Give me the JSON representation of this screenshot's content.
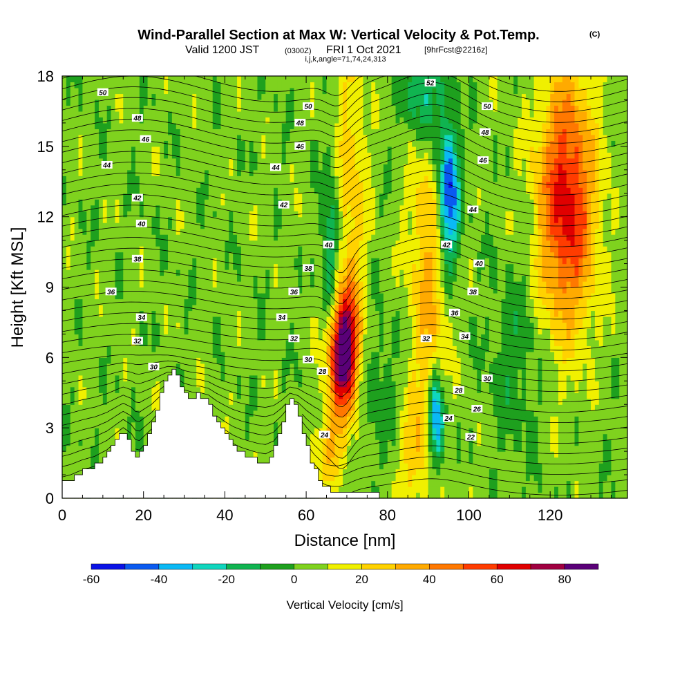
{
  "figure": {
    "title": "Wind-Parallel Section at Max W: Vertical Velocity & Pot.Temp.",
    "copyright": "(C)",
    "valid_prefix": "Valid 1200 JST",
    "valid_utc": "(0300Z)",
    "valid_date": "FRI 1 Oct 2021",
    "forecast_tag": "[9hrFcst@2216z]",
    "params": "i,j,k,angle=71,74,24,313"
  },
  "chart_data": {
    "type": "heatmap",
    "xlabel": "Distance [nm]",
    "ylabel": "Height [Kft MSL]",
    "xlim": [
      0,
      139
    ],
    "ylim": [
      0,
      18
    ],
    "x_ticks": [
      0,
      20,
      40,
      60,
      80,
      100,
      120
    ],
    "y_ticks": [
      0,
      3,
      6,
      9,
      12,
      15,
      18
    ],
    "fill_variable": "vertical velocity",
    "contour_variable": "potential temperature",
    "colorbar": {
      "title": "Vertical Velocity [cm/s]",
      "tick_labels": [
        -60,
        -40,
        -20,
        0,
        20,
        40,
        60,
        80
      ],
      "levels": [
        -60,
        -50,
        -40,
        -30,
        -20,
        -10,
        0,
        10,
        20,
        30,
        40,
        50,
        60,
        70,
        80,
        90
      ],
      "colors": [
        "#0a12e6",
        "#0a5af0",
        "#0ab9f5",
        "#10d6be",
        "#10b450",
        "#1ea01e",
        "#7fd21e",
        "#f0f000",
        "#ffd200",
        "#ffaa00",
        "#ff7800",
        "#ff3c00",
        "#e00000",
        "#a00040",
        "#5a0078"
      ]
    },
    "terrain_kft": [
      [
        0,
        0.7
      ],
      [
        2,
        0.8
      ],
      [
        5,
        1.1
      ],
      [
        8,
        1.3
      ],
      [
        11,
        1.8
      ],
      [
        13,
        2.4
      ],
      [
        15,
        3.0
      ],
      [
        17,
        2.4
      ],
      [
        18,
        1.8
      ],
      [
        19,
        1.7
      ],
      [
        20,
        2.1
      ],
      [
        22,
        2.9
      ],
      [
        24,
        4.1
      ],
      [
        26,
        5.3
      ],
      [
        28,
        5.4
      ],
      [
        30,
        4.5
      ],
      [
        32,
        4.3
      ],
      [
        34,
        4.4
      ],
      [
        36,
        4.2
      ],
      [
        38,
        3.4
      ],
      [
        40,
        2.8
      ],
      [
        42,
        2.3
      ],
      [
        44,
        2.0
      ],
      [
        46,
        1.8
      ],
      [
        48,
        1.6
      ],
      [
        50,
        1.5
      ],
      [
        52,
        1.9
      ],
      [
        54,
        3.0
      ],
      [
        56,
        4.4
      ],
      [
        58,
        3.8
      ],
      [
        60,
        2.4
      ],
      [
        62,
        1.3
      ],
      [
        64,
        0.6
      ],
      [
        66,
        0.3
      ],
      [
        70,
        0.2
      ],
      [
        80,
        0.1
      ],
      [
        100,
        0.05
      ],
      [
        139,
        0.05
      ]
    ],
    "vertical_velocity_features": [
      {
        "x": 69,
        "y": 6.3,
        "peak_cm_s": 90,
        "sx": 2.6,
        "sy": 1.7
      },
      {
        "x": 124,
        "y": 12.6,
        "peak_cm_s": 62,
        "sx": 5.0,
        "sy": 3.8
      },
      {
        "x": 71,
        "y": 12.5,
        "peak_cm_s": 22,
        "sx": 2.8,
        "sy": 5.5
      },
      {
        "x": 90,
        "y": 9.5,
        "peak_cm_s": 28,
        "sx": 3.5,
        "sy": 4.5
      },
      {
        "x": 87,
        "y": 2.0,
        "peak_cm_s": 20,
        "sx": 3.5,
        "sy": 1.8
      },
      {
        "x": 66,
        "y": 2.2,
        "peak_cm_s": 25,
        "sx": 2.5,
        "sy": 1.2
      },
      {
        "x": 95,
        "y": 13.0,
        "peak_cm_s": -60,
        "sx": 1.8,
        "sy": 2.2
      },
      {
        "x": 92,
        "y": 3.2,
        "peak_cm_s": -58,
        "sx": 1.4,
        "sy": 1.4
      },
      {
        "x": 66,
        "y": 10.2,
        "peak_cm_s": -30,
        "sx": 1.5,
        "sy": 2.8
      },
      {
        "x": 89,
        "y": 17.3,
        "peak_cm_s": -30,
        "sx": 3.0,
        "sy": 1.5
      },
      {
        "x": 78,
        "y": 4.5,
        "peak_cm_s": -12,
        "sx": 4.0,
        "sy": 2.5
      },
      {
        "x": 112,
        "y": 6.0,
        "peak_cm_s": -10,
        "sx": 5.0,
        "sy": 3.0
      }
    ],
    "pot_temp_labels": [
      {
        "text": "50",
        "x": 10,
        "y": 17.3
      },
      {
        "text": "48",
        "x": 18.5,
        "y": 16.2
      },
      {
        "text": "46",
        "x": 20.5,
        "y": 15.3
      },
      {
        "text": "44",
        "x": 11,
        "y": 14.2
      },
      {
        "text": "42",
        "x": 18.5,
        "y": 12.8
      },
      {
        "text": "40",
        "x": 19.5,
        "y": 11.7
      },
      {
        "text": "38",
        "x": 18.5,
        "y": 10.2
      },
      {
        "text": "36",
        "x": 12,
        "y": 8.8
      },
      {
        "text": "34",
        "x": 19.5,
        "y": 7.7
      },
      {
        "text": "32",
        "x": 18.5,
        "y": 6.7
      },
      {
        "text": "30",
        "x": 22.5,
        "y": 5.6
      },
      {
        "text": "50",
        "x": 60.5,
        "y": 16.7
      },
      {
        "text": "48",
        "x": 58.5,
        "y": 16.0
      },
      {
        "text": "46",
        "x": 58.5,
        "y": 15.0
      },
      {
        "text": "44",
        "x": 52.5,
        "y": 14.1
      },
      {
        "text": "42",
        "x": 54.5,
        "y": 12.5
      },
      {
        "text": "40",
        "x": 65.5,
        "y": 10.8
      },
      {
        "text": "38",
        "x": 60.5,
        "y": 9.8
      },
      {
        "text": "36",
        "x": 57,
        "y": 8.8
      },
      {
        "text": "34",
        "x": 54,
        "y": 7.7
      },
      {
        "text": "32",
        "x": 57,
        "y": 6.8
      },
      {
        "text": "30",
        "x": 60.5,
        "y": 5.9
      },
      {
        "text": "28",
        "x": 64,
        "y": 5.4
      },
      {
        "text": "24",
        "x": 64.5,
        "y": 2.7
      },
      {
        "text": "52",
        "x": 90.5,
        "y": 17.7
      },
      {
        "text": "50",
        "x": 104.5,
        "y": 16.7
      },
      {
        "text": "48",
        "x": 104,
        "y": 15.6
      },
      {
        "text": "46",
        "x": 103.5,
        "y": 14.4
      },
      {
        "text": "44",
        "x": 101,
        "y": 12.3
      },
      {
        "text": "42",
        "x": 94.5,
        "y": 10.8
      },
      {
        "text": "40",
        "x": 102.5,
        "y": 10.0
      },
      {
        "text": "38",
        "x": 101,
        "y": 8.8
      },
      {
        "text": "36",
        "x": 96.5,
        "y": 7.9
      },
      {
        "text": "34",
        "x": 99,
        "y": 6.9
      },
      {
        "text": "32",
        "x": 89.5,
        "y": 6.8
      },
      {
        "text": "30",
        "x": 104.5,
        "y": 5.1
      },
      {
        "text": "28",
        "x": 97.5,
        "y": 4.6
      },
      {
        "text": "26",
        "x": 102,
        "y": 3.8
      },
      {
        "text": "24",
        "x": 95,
        "y": 3.4
      },
      {
        "text": "22",
        "x": 100.5,
        "y": 2.6
      }
    ]
  }
}
